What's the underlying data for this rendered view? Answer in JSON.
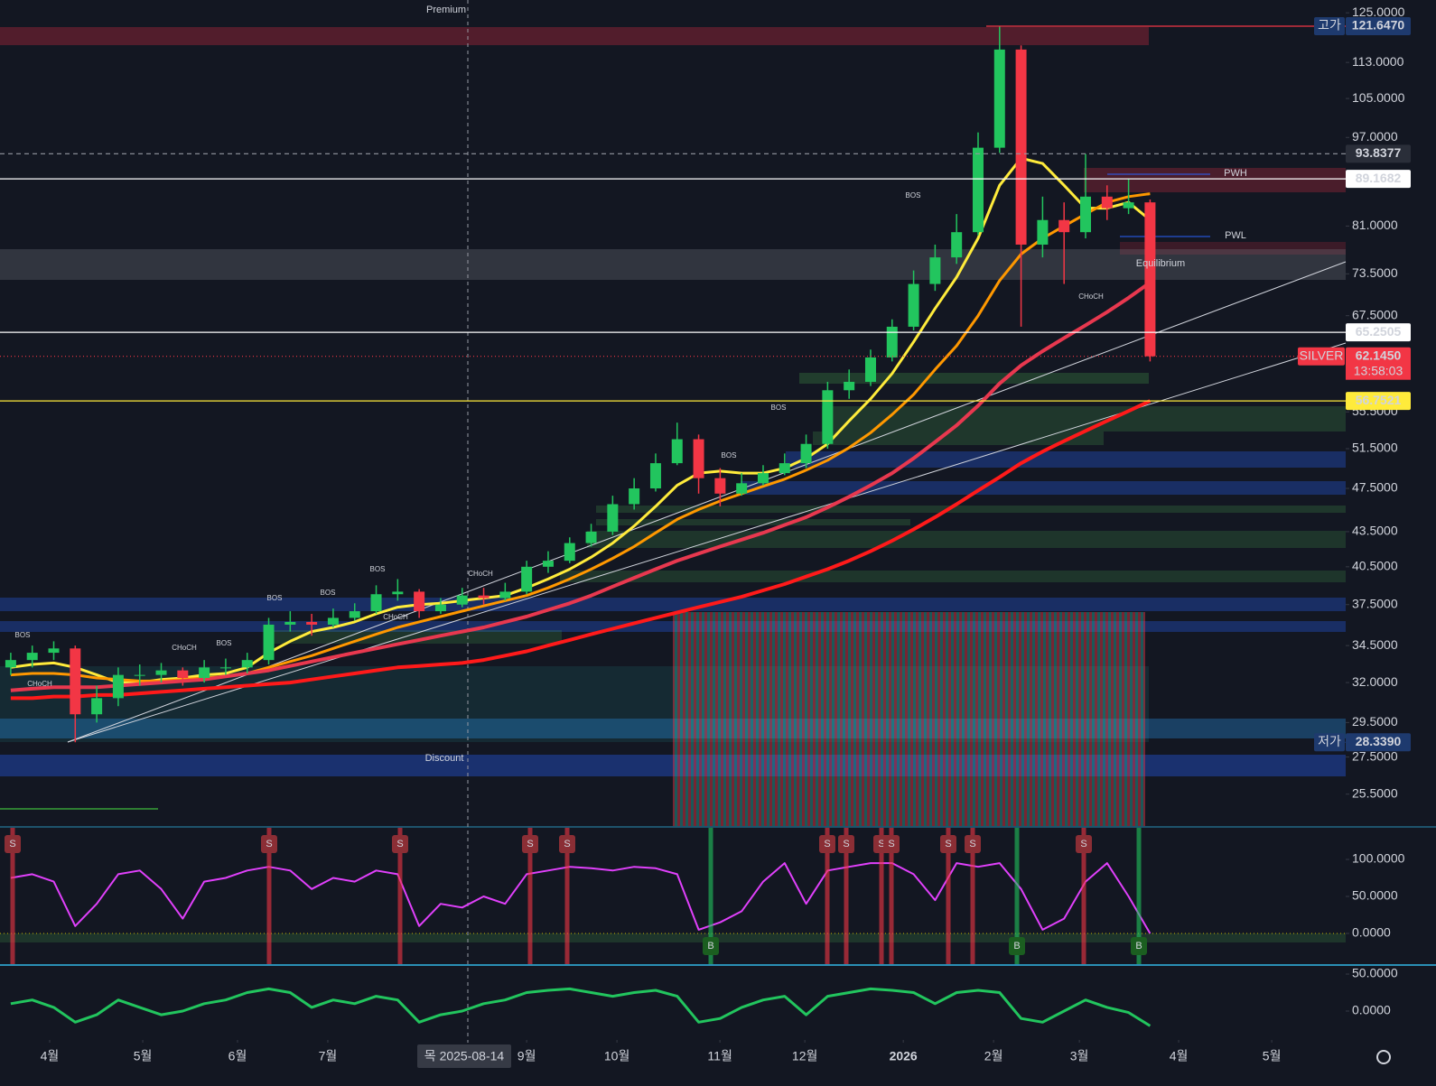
{
  "chart_data": [
    {
      "type": "candlestick",
      "title": "SILVER",
      "xlim": [
        -0.5,
        62.1
      ],
      "xticks": [
        {
          "value": 1.81,
          "label": "4월"
        },
        {
          "value": 6.14,
          "label": "5월"
        },
        {
          "value": 10.55,
          "label": "6월"
        },
        {
          "value": 14.75,
          "label": "7월"
        },
        {
          "value": 24.0,
          "label": "9월"
        },
        {
          "value": 28.2,
          "label": "10월"
        },
        {
          "value": 32.99,
          "label": "11월"
        },
        {
          "value": 36.94,
          "label": "12월"
        },
        {
          "value": 41.52,
          "label": "2026"
        },
        {
          "value": 45.72,
          "label": "2월"
        },
        {
          "value": 49.71,
          "label": "3월"
        },
        {
          "value": 54.33,
          "label": "4월"
        },
        {
          "value": 58.66,
          "label": "5월"
        }
      ],
      "ylim": [
        23.9,
        128.3
      ],
      "log_scale": true,
      "grid": false,
      "yticks": [
        {
          "value": 125,
          "label": "125.0000"
        },
        {
          "value": 113,
          "label": "113.0000"
        },
        {
          "value": 105,
          "label": "105.0000"
        },
        {
          "value": 97,
          "label": "97.0000"
        },
        {
          "value": 81,
          "label": "81.0000"
        },
        {
          "value": 73.5,
          "label": "73.5000"
        },
        {
          "value": 67.5,
          "label": "67.5000"
        },
        {
          "value": 55.5,
          "label": "55.5000"
        },
        {
          "value": 51.5,
          "label": "51.5000"
        },
        {
          "value": 47.5,
          "label": "47.5000"
        },
        {
          "value": 43.5,
          "label": "43.5000"
        },
        {
          "value": 40.5,
          "label": "40.5000"
        },
        {
          "value": 37.5,
          "label": "37.5000"
        },
        {
          "value": 34.5,
          "label": "34.5000"
        },
        {
          "value": 32,
          "label": "32.0000"
        },
        {
          "value": 29.5,
          "label": "29.5000"
        },
        {
          "value": 27.5,
          "label": "27.5000"
        },
        {
          "value": 25.5,
          "label": "25.5000"
        }
      ],
      "up_color": "#22c55e",
      "down_color": "#f23645",
      "open": [
        33,
        33.5,
        34,
        34.3,
        30,
        31,
        32.5,
        32.5,
        32.8,
        32.3,
        33,
        33,
        33.5,
        36,
        36.2,
        36,
        36.5,
        37,
        38.3,
        38.5,
        37,
        37.5,
        38.2,
        38,
        38.5,
        40.5,
        41,
        42.5,
        43.5,
        46,
        47.5,
        50,
        52.5,
        48.5,
        47,
        48,
        49,
        50,
        52,
        58,
        59,
        62,
        66,
        72,
        76,
        80,
        95,
        116,
        78,
        82,
        80,
        86,
        84,
        85
      ],
      "high": [
        34,
        34.5,
        34.8,
        34.5,
        31.8,
        33,
        33.2,
        33.3,
        33,
        33.5,
        33.6,
        34,
        36.5,
        37,
        36.8,
        37.2,
        37.6,
        39,
        39.5,
        38.7,
        38,
        38.8,
        38.8,
        39.2,
        41,
        41.8,
        43,
        44.2,
        46.8,
        48.5,
        51,
        54.3,
        53,
        49.5,
        49,
        49.8,
        51,
        53,
        59,
        60.5,
        63,
        67,
        74,
        78,
        83,
        98,
        121.65,
        117,
        86,
        85,
        93.8,
        88,
        89.2,
        85.5
      ],
      "low": [
        32.5,
        33,
        33.5,
        28.34,
        29.5,
        30.5,
        31.8,
        32,
        31.8,
        32,
        32.5,
        32.6,
        33.2,
        35.5,
        35.2,
        35.8,
        36.3,
        36.8,
        37.8,
        36.5,
        36.8,
        37.3,
        37.5,
        37.8,
        38.3,
        40,
        40.8,
        42.2,
        43.2,
        45.5,
        47.2,
        49.8,
        47,
        45.8,
        46.8,
        47.8,
        48.8,
        49.5,
        51.5,
        57,
        58.5,
        61.5,
        65.5,
        71,
        75,
        79.5,
        94,
        66,
        76,
        72,
        79,
        82,
        83,
        61.5
      ],
      "close": [
        33.5,
        34,
        34.3,
        30,
        31,
        32.5,
        32.5,
        32.8,
        32.3,
        33,
        33,
        33.5,
        36,
        36.2,
        36,
        36.5,
        37,
        38.3,
        38.5,
        37,
        37.5,
        38.2,
        38,
        38.5,
        40.5,
        41,
        42.5,
        43.5,
        46,
        47.5,
        50,
        52.5,
        48.5,
        47,
        48,
        49,
        50,
        52,
        58,
        59,
        62,
        66,
        72,
        76,
        80,
        95,
        116,
        78,
        82,
        80,
        86,
        84,
        85,
        62.145
      ],
      "series": [
        {
          "color": "#ffeb3b",
          "values": [
            33,
            33.2,
            33.3,
            33,
            32.5,
            32,
            32,
            32.2,
            32.3,
            32.5,
            32.6,
            33,
            34,
            34.8,
            35.5,
            35.8,
            36.2,
            36.8,
            37.3,
            37.5,
            37.6,
            37.8,
            38,
            38.2,
            38.8,
            39.5,
            40.3,
            41.3,
            42.5,
            44,
            45.8,
            47.8,
            49,
            49.2,
            49,
            49,
            49.5,
            50.5,
            52,
            54.5,
            57,
            60,
            64,
            68.5,
            73,
            79,
            88,
            93,
            92,
            88,
            84,
            84,
            85,
            82
          ]
        },
        {
          "color": "#ff9800",
          "values": [
            32.5,
            32.6,
            32.6,
            32.5,
            32.3,
            32.2,
            32.1,
            32.1,
            32.2,
            32.3,
            32.4,
            32.6,
            33,
            33.4,
            33.8,
            34.3,
            34.8,
            35.3,
            35.8,
            36.2,
            36.6,
            37,
            37.4,
            37.8,
            38.2,
            38.8,
            39.5,
            40.3,
            41.2,
            42.2,
            43.4,
            44.6,
            45.5,
            46.3,
            47,
            47.7,
            48.4,
            49.3,
            50.3,
            51.6,
            53.2,
            55.2,
            57.5,
            60.5,
            63.5,
            67.5,
            72.5,
            76.5,
            79,
            81,
            83,
            85,
            86,
            86.5
          ]
        },
        {
          "color": "#e8384f",
          "values": [
            31.5,
            31.6,
            31.7,
            31.7,
            31.7,
            31.8,
            31.9,
            32,
            32.1,
            32.2,
            32.4,
            32.6,
            32.8,
            33.1,
            33.4,
            33.7,
            34,
            34.3,
            34.6,
            34.9,
            35.2,
            35.5,
            35.8,
            36.2,
            36.6,
            37.1,
            37.6,
            38.2,
            38.9,
            39.6,
            40.3,
            41,
            41.6,
            42.2,
            42.8,
            43.4,
            44.1,
            44.8,
            45.7,
            46.7,
            47.8,
            49,
            50.5,
            52.2,
            54,
            56.2,
            58.8,
            61,
            62.8,
            64.5,
            66.2,
            68,
            70,
            72.2
          ]
        },
        {
          "color": "#ff1a1a",
          "values": [
            31,
            31,
            31.1,
            31.1,
            31.2,
            31.2,
            31.3,
            31.4,
            31.5,
            31.6,
            31.7,
            31.8,
            31.9,
            32,
            32.2,
            32.4,
            32.6,
            32.8,
            33,
            33.1,
            33.2,
            33.3,
            33.5,
            33.8,
            34.1,
            34.5,
            34.9,
            35.3,
            35.7,
            36.1,
            36.5,
            36.9,
            37.3,
            37.7,
            38.1,
            38.6,
            39.1,
            39.7,
            40.3,
            41,
            41.8,
            42.7,
            43.7,
            44.8,
            46,
            47.3,
            48.6,
            50,
            51.2,
            52.3,
            53.4,
            54.5,
            55.6,
            56.75
          ]
        }
      ],
      "price_lines": [
        {
          "value": 121.647,
          "label": "121.6470",
          "tag": "고가",
          "style": "solid",
          "color": "#f23645",
          "box_color": "#1e3a6e",
          "text_color": "#ffffff"
        },
        {
          "value": 93.8377,
          "label": "93.8377",
          "style": "dashed",
          "color": "#9598a1",
          "box_color": "#2a2e39",
          "text_color": "#ffffff"
        },
        {
          "value": 89.1682,
          "label": "89.1682",
          "style": "solid",
          "color": "#ffffff",
          "box_color": "#ffffff",
          "text_color": "#131722"
        },
        {
          "value": 65.2505,
          "label": "65.2505",
          "style": "solid",
          "color": "#ffffff",
          "box_color": "#ffffff",
          "text_color": "#131722"
        },
        {
          "value": 62.145,
          "label": "62.1450",
          "tag": "SILVER",
          "style": "dotted",
          "color": "#f23645",
          "box_color": "#f23645",
          "text_color": "#ffffff"
        },
        {
          "value": 56.7521,
          "label": "56.7521",
          "style": "solid",
          "color": "#ffeb3b",
          "box_color": "#ffeb3b",
          "text_color": "#131722"
        },
        {
          "value": 28.339,
          "label": "28.3390",
          "tag": "저가",
          "style": "none",
          "color": "#1e3a6e",
          "box_color": "#1e3a6e",
          "text_color": "#ffffff"
        }
      ],
      "last_price_timer": "13:58:03",
      "crosshair_label": "목 2025-08-14",
      "annotations": [
        "Premium",
        "Discount",
        "Equilibrium",
        "PWH",
        "PWL",
        "BOS",
        "BOS",
        "BOS",
        "BOS",
        "BOS",
        "BOS",
        "BOS",
        "BOS",
        "CHoCH",
        "CHoCH",
        "CHoCH",
        "CHoCH",
        "CHoCH"
      ]
    },
    {
      "type": "line",
      "ylim": [
        -41.5,
        142.7
      ],
      "yticks": [
        {
          "value": 100,
          "label": "100.0000"
        },
        {
          "value": 50,
          "label": "50.0000"
        },
        {
          "value": 0,
          "label": "0.0000"
        }
      ],
      "color": "#e040fb",
      "values": [
        75,
        80,
        70,
        10,
        40,
        80,
        85,
        60,
        20,
        70,
        75,
        85,
        90,
        85,
        60,
        75,
        70,
        85,
        80,
        10,
        40,
        35,
        50,
        40,
        80,
        85,
        90,
        88,
        85,
        90,
        88,
        80,
        5,
        15,
        30,
        70,
        95,
        40,
        85,
        90,
        95,
        95,
        80,
        45,
        95,
        90,
        95,
        60,
        5,
        20,
        70,
        95,
        50,
        0
      ],
      "signals": [
        "S",
        "S",
        "S",
        "S",
        "S",
        "S",
        "S",
        "S",
        "S",
        "S",
        "S",
        "S",
        "B",
        "B",
        "B"
      ]
    },
    {
      "type": "line",
      "ylim": [
        -36.6,
        61
      ],
      "yticks": [
        {
          "value": 50,
          "label": "50.0000"
        },
        {
          "value": 0,
          "label": "0.0000"
        }
      ],
      "color": "#22c55e",
      "values": [
        10,
        15,
        5,
        -15,
        -5,
        15,
        5,
        -5,
        0,
        10,
        15,
        25,
        30,
        25,
        5,
        15,
        10,
        20,
        15,
        -15,
        -5,
        0,
        10,
        15,
        25,
        28,
        30,
        25,
        20,
        25,
        28,
        20,
        -15,
        -10,
        5,
        15,
        20,
        -5,
        20,
        25,
        30,
        28,
        25,
        10,
        25,
        28,
        25,
        -10,
        -15,
        0,
        15,
        5,
        -2,
        -20
      ]
    }
  ]
}
